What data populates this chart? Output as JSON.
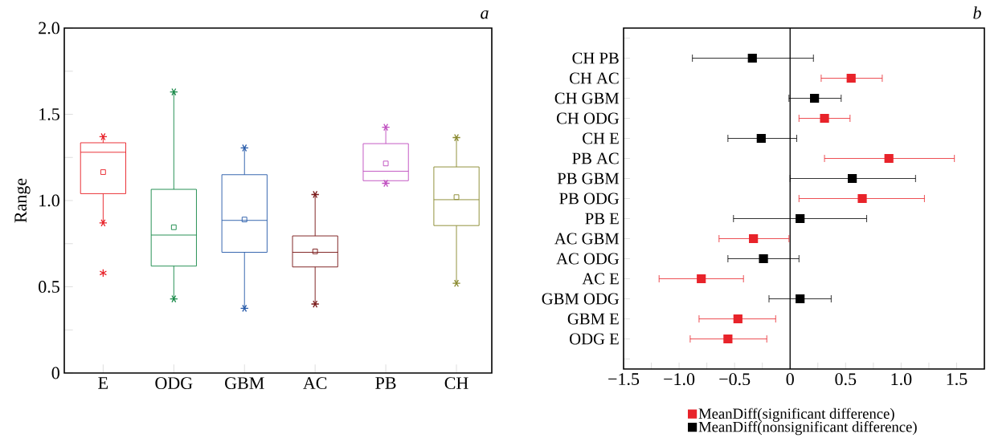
{
  "chart_data": [
    {
      "type": "box",
      "title": "a",
      "ylabel": "Range",
      "categories": [
        "E",
        "ODG",
        "GBM",
        "AC",
        "PB",
        "CH"
      ],
      "colors": [
        "#e8232a",
        "#1a8a4a",
        "#2a5caa",
        "#7a1a1a",
        "#c050c0",
        "#8a8a30"
      ],
      "boxes": [
        {
          "low": 0.87,
          "q1": 1.04,
          "median": 1.28,
          "q3": 1.335,
          "high": 1.37,
          "mean": 1.165,
          "outliers": [
            0.58
          ]
        },
        {
          "low": 0.43,
          "q1": 0.62,
          "median": 0.8,
          "q3": 1.065,
          "high": 1.63,
          "mean": 0.845
        },
        {
          "low": 0.375,
          "q1": 0.7,
          "median": 0.885,
          "q3": 1.15,
          "high": 1.305,
          "mean": 0.89
        },
        {
          "low": 0.4,
          "q1": 0.615,
          "median": 0.7,
          "q3": 0.795,
          "high": 1.035,
          "mean": 0.705
        },
        {
          "low": 1.1,
          "q1": 1.115,
          "median": 1.17,
          "q3": 1.33,
          "high": 1.425,
          "mean": 1.215
        },
        {
          "low": 0.52,
          "q1": 0.855,
          "median": 1.005,
          "q3": 1.195,
          "high": 1.365,
          "mean": 1.02
        }
      ],
      "ylim": [
        0,
        2
      ],
      "yticks": [
        0,
        {
          "value": 0.25,
          "label": null
        },
        0.5,
        {
          "value": 0.75,
          "label": null
        },
        {
          "value": 1,
          "label": "1.0"
        },
        {
          "value": 1.25,
          "label": null
        },
        1.5,
        {
          "value": 1.75,
          "label": null
        },
        {
          "value": 2,
          "label": "2.0"
        }
      ],
      "marker": "star"
    },
    {
      "type": "scatter",
      "title": "b",
      "orientation": "horizontal",
      "categories": [
        "CH PB",
        "CH AC",
        "CH GBM",
        "CH ODG",
        "CH E",
        "PB AC",
        "PB GBM",
        "PB ODG",
        "PB E",
        "AC GBM",
        "AC ODG",
        "AC E",
        "GBM ODG",
        "GBM E",
        "ODG E"
      ],
      "series": [
        {
          "name": "MeanDiff(significant difference)",
          "color": "#e8232a",
          "values": [
            null,
            0.55,
            null,
            0.31,
            null,
            0.89,
            null,
            0.65,
            null,
            -0.33,
            null,
            -0.8,
            null,
            -0.47,
            -0.56
          ],
          "errors": [
            null,
            [
              0.28,
              0.83
            ],
            null,
            [
              0.08,
              0.54
            ],
            null,
            [
              0.31,
              1.48
            ],
            null,
            [
              0.08,
              1.21
            ],
            null,
            [
              -0.64,
              -0.01
            ],
            null,
            [
              -1.18,
              -0.42
            ],
            null,
            [
              -0.82,
              -0.13
            ],
            [
              -0.9,
              -0.21
            ]
          ]
        },
        {
          "name": "MeanDiff(nonsignificant difference)",
          "color": "#000000",
          "values": [
            -0.34,
            null,
            0.22,
            null,
            -0.26,
            null,
            0.56,
            null,
            0.09,
            null,
            -0.24,
            null,
            0.09,
            null,
            null
          ],
          "errors": [
            [
              -0.88,
              0.21
            ],
            null,
            [
              -0.01,
              0.46
            ],
            null,
            [
              -0.56,
              0.06
            ],
            null,
            [
              0.0,
              1.13
            ],
            null,
            [
              -0.51,
              0.69
            ],
            null,
            [
              -0.56,
              0.08
            ],
            null,
            [
              -0.19,
              0.37
            ],
            null,
            null
          ]
        }
      ],
      "xlim": [
        -1.5,
        1.75
      ],
      "xticks": [
        {
          "value": -1.5,
          "label": "−1.5"
        },
        {
          "value": -1.25,
          "label": null
        },
        {
          "value": -1,
          "label": "−1.0"
        },
        {
          "value": -0.75,
          "label": null
        },
        {
          "value": -0.5,
          "label": "−0.5"
        },
        {
          "value": -0.25,
          "label": null
        },
        0,
        {
          "value": 0.25,
          "label": null
        },
        0.5,
        {
          "value": 0.75,
          "label": null
        },
        {
          "value": 1,
          "label": "1.0"
        },
        {
          "value": 1.25,
          "label": null
        },
        1.5
      ],
      "ref_lines": [
        {
          "axis": "x",
          "value": 0,
          "color": "#000000"
        }
      ],
      "legend": "bottom",
      "marker": "square"
    }
  ]
}
